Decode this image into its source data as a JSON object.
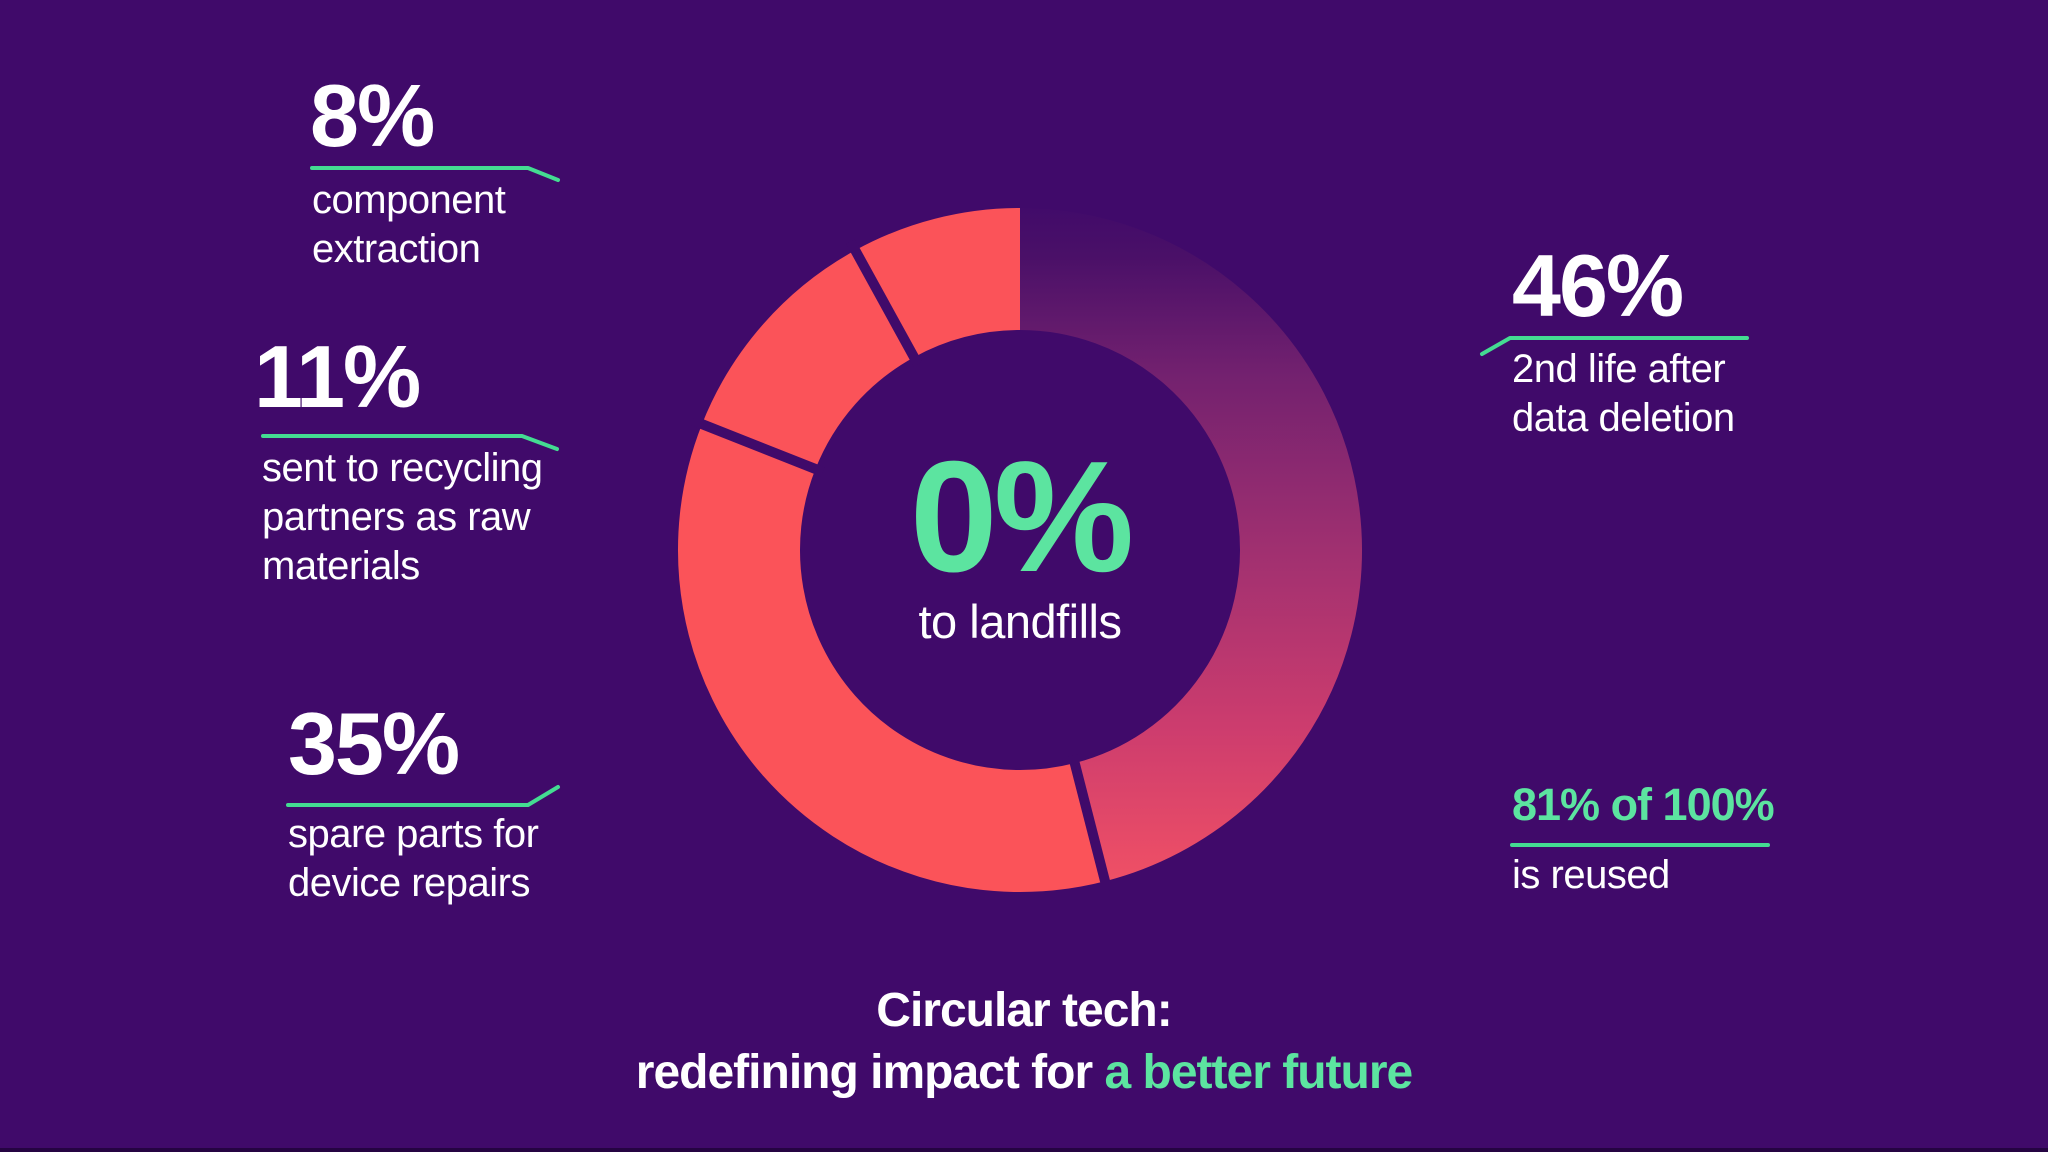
{
  "colors": {
    "background": "#400A6A",
    "bottom_edge": "#250442",
    "coral": "#FB5359",
    "accent_green": "#5CE4A0",
    "line_green": "#44DC92",
    "white": "#FFFFFF",
    "gradient_mid": "#A03070",
    "gradient_end": "#F25365"
  },
  "chart_data": {
    "type": "pie",
    "subtype": "donut",
    "title": "Circular tech: redefining impact for a better future",
    "center_value": "0%",
    "center_label": "to landfills",
    "legend_position": "none",
    "start_angle_deg_clockwise_from_top": 0,
    "segments_clockwise_from_top": [
      {
        "label": "2nd life after data deletion",
        "value": 46,
        "fill": "gradient",
        "color": "#F25365"
      },
      {
        "label": "spare parts for device repairs",
        "value": 35,
        "fill": "solid",
        "color": "#FB5359"
      },
      {
        "label": "sent to recycling partners as raw materials",
        "value": 11,
        "fill": "solid",
        "color": "#FB5359"
      },
      {
        "label": "component extraction",
        "value": 8,
        "fill": "solid",
        "color": "#FB5359"
      }
    ],
    "gradient_stops": [
      {
        "offset": "0%",
        "color": "#400A6A"
      },
      {
        "offset": "8%",
        "color": "#4A1068"
      },
      {
        "offset": "25%",
        "color": "#73216F"
      },
      {
        "offset": "50%",
        "color": "#A03070"
      },
      {
        "offset": "75%",
        "color": "#CC3C6E"
      },
      {
        "offset": "93%",
        "color": "#E94C67"
      },
      {
        "offset": "100%",
        "color": "#F25365"
      }
    ],
    "annotation": "81% of 100% is reused"
  },
  "stats": [
    {
      "value": "8%",
      "lines": [
        "component",
        "extraction"
      ]
    },
    {
      "value": "11%",
      "lines": [
        "sent to recycling",
        "partners as raw",
        "materials"
      ]
    },
    {
      "value": "35%",
      "lines": [
        "spare parts for",
        "device repairs"
      ]
    },
    {
      "value": "46%",
      "lines": [
        "2nd life after",
        "data deletion"
      ]
    },
    {
      "value": "81% of 100%",
      "lines": [
        "is reused"
      ]
    }
  ],
  "center": {
    "value": "0%",
    "label": "to landfills"
  },
  "footer": {
    "line1": "Circular tech:",
    "line2_prefix": "redefining impact for ",
    "line2_highlight": "a better future"
  }
}
